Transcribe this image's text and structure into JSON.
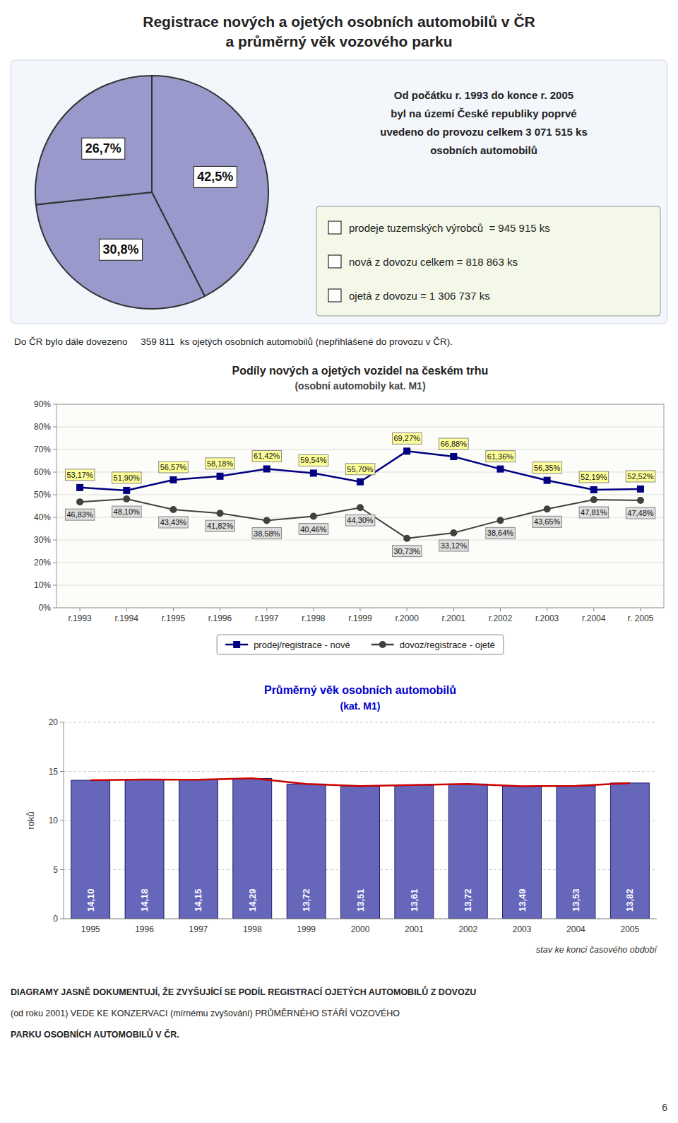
{
  "title": "Registrace nových a ojetých osobních automobilů v ČR",
  "subtitle": "a průměrný věk vozového parku",
  "chart_data": [
    {
      "type": "pie",
      "values": [
        42.5,
        30.8,
        26.7
      ],
      "value_labels": [
        "42,5%",
        "30,8%",
        "26,7%"
      ],
      "color": "#9999cc",
      "data_labels": true,
      "annotations": [
        "Od počátku r. 1993 do konce r. 2005\nbyl na území České republiky poprvé\nuvedeno do provozu celkem 3 071 515 ks\nosobních automobilů",
        "prodeje tuzemských výrobců  = 945 915 ks",
        "nová z dovozu celkem = 818 863 ks",
        "ojetá z dovozu = 1 306 737 ks",
        "Do ČR bylo dále dovezeno     359 811  ks ojetých osobních automobilů (nepřihlášené do provozu v ČR)."
      ]
    },
    {
      "type": "line",
      "title": "Podíly nových a ojetých vozidel na českém trhu",
      "subtitle": "(osobní automobily kat. M1)",
      "categories": [
        "r.1993",
        "r.1994",
        "r.1995",
        "r.1996",
        "r.1997",
        "r.1998",
        "r.1999",
        "r.2000",
        "r.2001",
        "r.2002",
        "r.2003",
        "r.2004",
        "r. 2005"
      ],
      "series": [
        {
          "name": "prodej/registrace - nové",
          "color": "#000080",
          "marker": "square",
          "values": [
            53.17,
            51.9,
            56.57,
            58.18,
            61.42,
            59.54,
            55.7,
            69.27,
            66.88,
            61.36,
            56.35,
            52.19,
            52.52
          ],
          "value_labels": [
            "53,17%",
            "51,90%",
            "56,57%",
            "58,18%",
            "61,42%",
            "59,54%",
            "55,70%",
            "69,27%",
            "66,88%",
            "61,36%",
            "56,35%",
            "52,19%",
            "52,52%"
          ]
        },
        {
          "name": "dovoz/registrace - ojeté",
          "color": "#404040",
          "marker": "circle",
          "values": [
            46.83,
            48.1,
            43.43,
            41.82,
            38.58,
            40.46,
            44.3,
            30.73,
            33.12,
            38.64,
            43.65,
            47.81,
            47.48
          ],
          "value_labels": [
            "46,83%",
            "48,10%",
            "43,43%",
            "41,82%",
            "38,58%",
            "40,46%",
            "44,30%",
            "30,73%",
            "33,12%",
            "38,64%",
            "43,65%",
            "47,81%",
            "47,48%"
          ]
        }
      ],
      "ylim": [
        0,
        90
      ],
      "yticks": [
        {
          "value": 0,
          "label": "0%"
        },
        {
          "value": 10,
          "label": "10%"
        },
        {
          "value": 20,
          "label": "20%"
        },
        {
          "value": 30,
          "label": "30%"
        },
        {
          "value": 40,
          "label": "40%"
        },
        {
          "value": 50,
          "label": "50%"
        },
        {
          "value": 60,
          "label": "60%"
        },
        {
          "value": 70,
          "label": "70%"
        },
        {
          "value": 80,
          "label": "80%"
        },
        {
          "value": 90,
          "label": "90%"
        }
      ],
      "grid": true,
      "data_labels": true,
      "legend": "bottom"
    },
    {
      "type": "bar",
      "title": "Průměrný věk osobních automobilů",
      "subtitle": "(kat. M1)",
      "y_label": "roků",
      "categories": [
        "1995",
        "1996",
        "1997",
        "1998",
        "1999",
        "2000",
        "2001",
        "2002",
        "2003",
        "2004",
        "2005"
      ],
      "series": [
        {
          "type": "bar",
          "color": "#6666bb",
          "values": [
            14.1,
            14.18,
            14.15,
            14.29,
            13.72,
            13.51,
            13.61,
            13.72,
            13.49,
            13.53,
            13.82
          ],
          "value_labels": [
            "14,10",
            "14,18",
            "14,15",
            "14,29",
            "13,72",
            "13,51",
            "13,61",
            "13,72",
            "13,49",
            "13,53",
            "13,82"
          ]
        },
        {
          "type": "line",
          "color": "#cc0000",
          "values": [
            14.1,
            14.18,
            14.15,
            14.29,
            13.72,
            13.51,
            13.61,
            13.72,
            13.49,
            13.53,
            13.82
          ]
        }
      ],
      "ylim": [
        0,
        20
      ],
      "yticks": [
        0,
        5,
        10,
        15,
        20
      ],
      "grid": true,
      "data_labels": true,
      "annotations": [
        "stav ke konci časového období"
      ]
    }
  ],
  "annotations": [
    "DIAGRAMY JASNĚ DOKUMENTUJÍ, ŽE ZVYŠUJÍCÍ SE PODÍL REGISTRACÍ OJETÝCH AUTOMOBILŮ Z DOVOZU",
    "(od roku 2001) VEDE KE KONZERVACI (mírnému zvyšování) PRŮMĚRNÉHO STÁŘÍ VOZOVÉHO",
    "PARKU OSOBNÍCH AUTOMOBILŮ V ČR.",
    "6"
  ]
}
